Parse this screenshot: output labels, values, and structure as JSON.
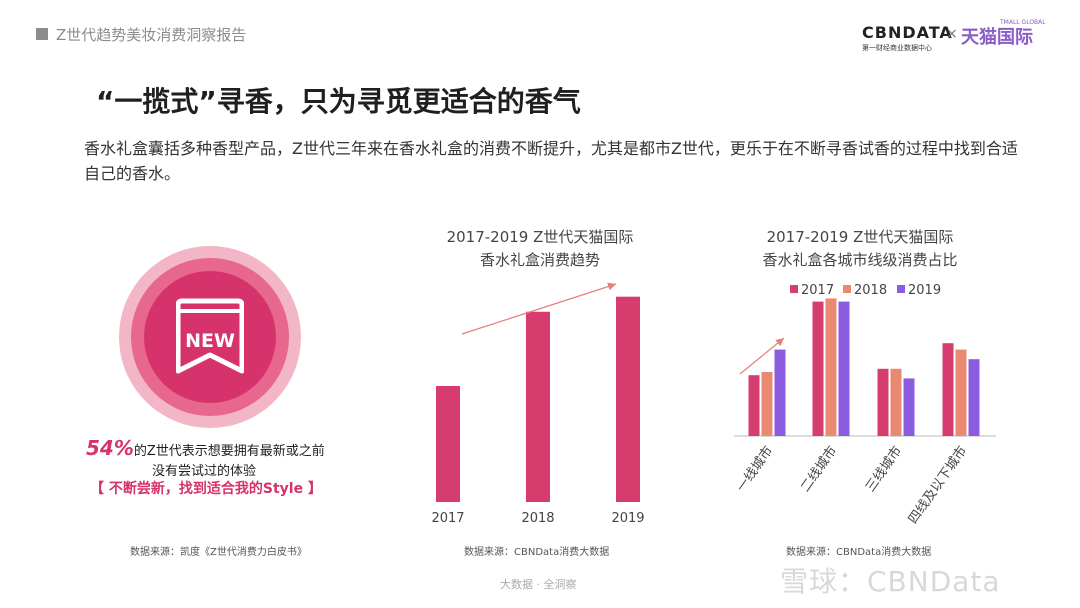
{
  "header": {
    "title": "Z世代趋势美妆消费洞察报告",
    "brand_cbn": "CBNDATA",
    "brand_cbn_sub": "第一财经商业数据中心",
    "brand_times": "×",
    "brand_tmall": "天猫国际",
    "brand_tmall_small": "TMALL GLOBAL"
  },
  "main": {
    "title": "“一揽式”寻香，只为寻觅更适合的香气",
    "intro": "香水礼盒囊括多种香型产品，Z世代三年来在香水礼盒的消费不断提升，尤其是都市Z世代，更乐于在不断寻香试香的过程中找到合适自己的香水。"
  },
  "stat": {
    "percent": "54%",
    "line1_rest": "的Z世代表示想要拥有最新或之前",
    "line2": "没有尝试过的体验",
    "line3": "【 不断尝新，找到适合我的Style 】",
    "badge_text": "NEW",
    "source": "数据来源：凯度《Z世代消费力白皮书》"
  },
  "colors": {
    "accent": "#d6336c",
    "y2017": "#d63d6e",
    "y2018": "#e98a70",
    "y2019": "#8b5ce0",
    "arrow": "#e5807a"
  },
  "chart_data": [
    {
      "type": "bar",
      "title": "2017-2019 Z世代天猫国际",
      "subtitle": "香水礼盒消费趋势",
      "categories": [
        "2017",
        "2018",
        "2019"
      ],
      "values": [
        1.0,
        1.64,
        1.77
      ],
      "ylim": [
        0,
        2
      ],
      "grid": false,
      "source": "数据来源：CBNData消费大数据"
    },
    {
      "type": "bar",
      "title": "2017-2019 Z世代天猫国际",
      "subtitle": "香水礼盒各城市线级消费占比",
      "categories": [
        "一线城市",
        "二线城市",
        "三线城市",
        "四线及以下城市"
      ],
      "series": [
        {
          "name": "2017",
          "values": [
            0.19,
            0.42,
            0.21,
            0.29
          ]
        },
        {
          "name": "2018",
          "values": [
            0.2,
            0.43,
            0.21,
            0.27
          ]
        },
        {
          "name": "2019",
          "values": [
            0.27,
            0.42,
            0.18,
            0.24
          ]
        }
      ],
      "ylim": [
        0,
        0.5
      ],
      "legend": "top",
      "grid": false,
      "source": "数据来源：CBNData消费大数据"
    }
  ],
  "footer": {
    "center": "大数据 · 全洞察",
    "watermark": "雪球：CBNData"
  }
}
